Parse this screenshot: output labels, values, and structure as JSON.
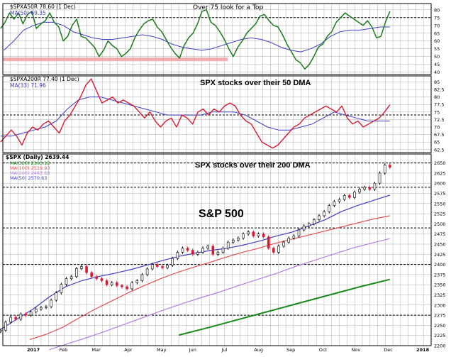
{
  "colors": {
    "page_bg": "#ffffff",
    "grid": "#9a9a9a",
    "frame": "#000000",
    "green": "#1e7a1e",
    "red": "#d51d34",
    "ma_blue": "#3f3fbf",
    "ma200": "#b27fe0",
    "ma100": "#e05050",
    "ma320": "#1a8a1a",
    "pink_band": "#f0a0a0"
  },
  "chart_data": [
    {
      "type": "line",
      "panel": "top",
      "legend": [
        "$SPXA50R 78.60 (1 Dec)",
        "MA(50) 69.35"
      ],
      "annotation": "Over 75 look for a Top",
      "y_ticks": [
        80,
        75,
        70,
        65,
        60,
        55,
        50,
        45,
        40
      ],
      "ylim": [
        38.5,
        84
      ],
      "horizontal_line_at": 75,
      "shaded_band": {
        "y": 48,
        "x_from_month": 0,
        "x_to_month": 6.1
      },
      "series": [
        {
          "name": "$SPXA50R",
          "values": [
            68,
            72,
            78,
            74,
            78,
            71,
            77,
            79,
            68,
            71,
            73,
            78,
            72,
            69,
            60,
            63,
            70,
            74,
            63,
            62,
            59,
            56,
            50,
            54,
            60,
            57,
            55,
            50,
            52,
            55,
            62,
            67,
            71,
            73,
            74,
            69,
            66,
            61,
            56,
            52,
            49,
            57,
            62,
            65,
            71,
            79,
            80,
            72,
            70,
            66,
            61,
            55,
            50,
            56,
            60,
            65,
            68,
            71,
            76,
            77,
            73,
            70,
            69,
            64,
            58,
            53,
            48,
            46,
            42,
            45,
            50,
            56,
            58,
            63,
            66,
            72,
            75,
            78,
            76,
            74,
            72,
            70,
            73,
            69,
            62,
            63,
            72,
            79
          ]
        },
        {
          "name": "MA(50)",
          "values": [
            54,
            60,
            67,
            70,
            72,
            72,
            70,
            66,
            64,
            62,
            61,
            61,
            62,
            63,
            64,
            63,
            61,
            58,
            56,
            55,
            54,
            55,
            57,
            59,
            61,
            62,
            61,
            59,
            56,
            54,
            53,
            55,
            58,
            63,
            66,
            67,
            67,
            68,
            69,
            69
          ]
        }
      ]
    },
    {
      "type": "line",
      "panel": "middle",
      "legend": [
        "$SPXA200R 77.40 (1 Dec)",
        "MA(33) 71.96"
      ],
      "annotation": "SPX stocks over their 50 DMA",
      "y_ticks": [
        85,
        82.5,
        80,
        77.5,
        75,
        72.5,
        70,
        67.5,
        65,
        62.5
      ],
      "ylim": [
        61.5,
        87
      ],
      "horizontal_line_at": 74,
      "series": [
        {
          "name": "$SPXA200R",
          "values": [
            65,
            67,
            69,
            67,
            64,
            68,
            70,
            69,
            71,
            72,
            70,
            68,
            72,
            74,
            77,
            80,
            84,
            86,
            82,
            78,
            79,
            80,
            78,
            79,
            78,
            77,
            75,
            73,
            75,
            72,
            70,
            72,
            73,
            70,
            74,
            73,
            71,
            75,
            76,
            74,
            76,
            75,
            77,
            78,
            77,
            74,
            72,
            71,
            68,
            65,
            64,
            63,
            64,
            66,
            68,
            70,
            71,
            73,
            74,
            75,
            76,
            77,
            76,
            75,
            77,
            73,
            71,
            72,
            70,
            71,
            72,
            73,
            75,
            77.4
          ]
        },
        {
          "name": "MA(33)",
          "values": [
            67,
            67,
            68,
            69,
            70,
            72,
            76,
            79,
            80,
            80,
            79,
            78,
            77,
            76,
            75,
            74,
            74,
            74,
            74,
            75,
            75,
            75,
            74,
            72,
            70,
            69,
            69,
            70,
            71,
            73,
            75,
            74,
            73,
            72,
            72,
            72
          ]
        }
      ]
    },
    {
      "type": "candlestick",
      "panel": "bottom",
      "legend": [
        "$SPX (Daily) 2639.44",
        "MA(320) 2363.12",
        "MA(100) 2519.93",
        "MA(200) 2463.68",
        "MA(50) 2570.63"
      ],
      "annotations": [
        "SPX stocks over their 200 DMA",
        "S&P 500"
      ],
      "x_tick_labels": [
        "2017",
        "Feb",
        "Mar",
        "Apr",
        "May",
        "Jun",
        "Jul",
        "Aug",
        "Sep",
        "Oct",
        "Nov",
        "Dec",
        "2018"
      ],
      "y_ticks": [
        2650,
        2625,
        2600,
        2575,
        2550,
        2525,
        2500,
        2475,
        2450,
        2425,
        2400,
        2375,
        2350,
        2325,
        2300,
        2275,
        2250,
        2225,
        2200
      ],
      "ylim": [
        2200,
        2672
      ],
      "horizontal_lines_at": [
        2650,
        2590,
        2490,
        2400,
        2275
      ],
      "series": [
        {
          "name": "$SPX",
          "values": [
            2238,
            2258,
            2270,
            2265,
            2278,
            2275,
            2283,
            2290,
            2294,
            2296,
            2312,
            2330,
            2351,
            2365,
            2370,
            2390,
            2395,
            2380,
            2370,
            2365,
            2360,
            2350,
            2355,
            2348,
            2345,
            2340,
            2355,
            2360,
            2375,
            2389,
            2400,
            2395,
            2392,
            2398,
            2415,
            2430,
            2440,
            2435,
            2425,
            2430,
            2440,
            2445,
            2425,
            2430,
            2440,
            2455,
            2460,
            2465,
            2475,
            2480,
            2470,
            2475,
            2468,
            2440,
            2430,
            2445,
            2455,
            2465,
            2470,
            2485,
            2495,
            2500,
            2510,
            2520,
            2530,
            2545,
            2555,
            2560,
            2570,
            2565,
            2578,
            2585,
            2590,
            2585,
            2600,
            2625,
            2645,
            2639.44
          ]
        },
        {
          "name": "MA(50)",
          "values": [
            2240,
            2265,
            2290,
            2320,
            2345,
            2360,
            2370,
            2378,
            2387,
            2398,
            2410,
            2420,
            2428,
            2435,
            2440,
            2448,
            2458,
            2470,
            2480,
            2495,
            2510,
            2530,
            2545,
            2558,
            2570.63
          ]
        },
        {
          "name": "MA(100)",
          "values": [
            2215,
            2228,
            2245,
            2268,
            2290,
            2310,
            2330,
            2348,
            2365,
            2380,
            2393,
            2405,
            2418,
            2430,
            2440,
            2452,
            2462,
            2472,
            2482,
            2492,
            2502,
            2512,
            2519.93
          ]
        },
        {
          "name": "MA(200)",
          "values": [
            2190,
            2205,
            2220,
            2236,
            2253,
            2270,
            2287,
            2303,
            2318,
            2332,
            2348,
            2363,
            2378,
            2395,
            2410,
            2425,
            2440,
            2452,
            2463.68
          ]
        },
        {
          "name": "MA(320)",
          "values": [
            2226,
            2245,
            2265,
            2285,
            2305,
            2325,
            2345,
            2363.12
          ]
        }
      ]
    }
  ]
}
